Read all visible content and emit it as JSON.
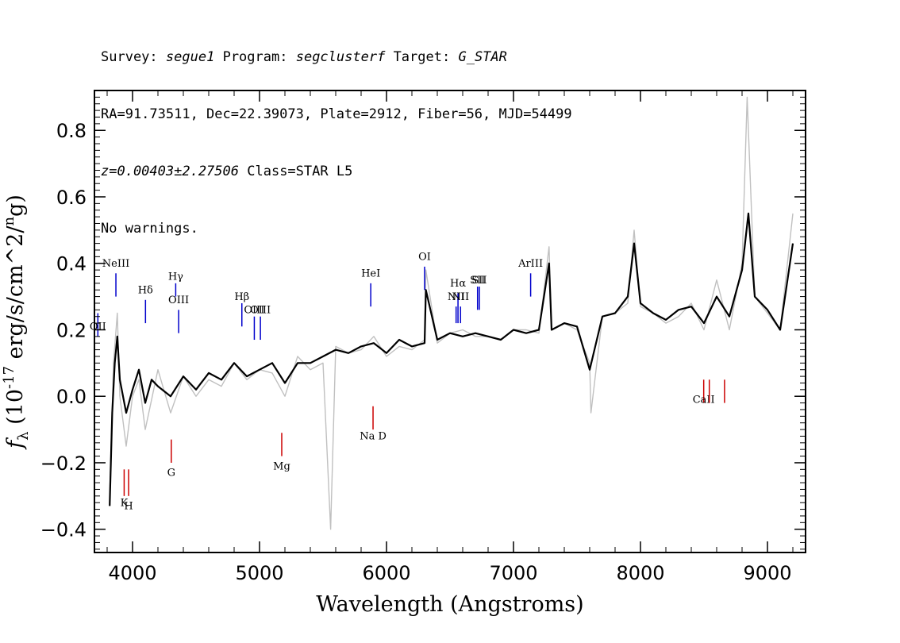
{
  "header": {
    "survey_label": "Survey:",
    "survey": "segue1",
    "program_label": "Program:",
    "program": "segclusterf",
    "target_label": "Target:",
    "target": "G_STAR",
    "coords": "RA=91.73511, Dec=22.39073, Plate=2912, Fiber=56, MJD=54499",
    "redshift": "z=0.00403±2.27506",
    "class": "Class=STAR L5",
    "warnings": "No warnings."
  },
  "chart_data": {
    "type": "line",
    "title": "",
    "xlabel": "Wavelength (Angstroms)",
    "ylabel": "f_λ (10^-17 erg/s/cm^2/Ang)",
    "xlim": [
      3700,
      9300
    ],
    "ylim": [
      -0.47,
      0.92
    ],
    "xticks": [
      4000,
      5000,
      6000,
      7000,
      8000,
      9000
    ],
    "yticks": [
      -0.4,
      -0.2,
      0.0,
      0.2,
      0.4,
      0.6,
      0.8
    ],
    "ytick_labels": [
      "−0.4",
      "−0.2",
      "0.0",
      "0.2",
      "0.4",
      "0.6",
      "0.8"
    ],
    "colors": {
      "raw": "#c0c0c0",
      "smoothed": "#000000",
      "emission": "#0000cc",
      "absorption": "#cc0000"
    },
    "series": [
      {
        "name": "raw flux",
        "x": [
          3820,
          3850,
          3880,
          3900,
          3950,
          4000,
          4050,
          4100,
          4200,
          4300,
          4400,
          4500,
          4600,
          4700,
          4800,
          4900,
          5000,
          5100,
          5200,
          5300,
          5400,
          5500,
          5560,
          5600,
          5700,
          5800,
          5900,
          6000,
          6100,
          6200,
          6300,
          6310,
          6400,
          6500,
          6600,
          6700,
          6800,
          6900,
          7000,
          7100,
          7200,
          7280,
          7300,
          7400,
          7500,
          7600,
          7610,
          7700,
          7800,
          7900,
          7950,
          8000,
          8100,
          8200,
          8300,
          8400,
          8500,
          8600,
          8700,
          8800,
          8840,
          8900,
          9000,
          9100,
          9200
        ],
        "y": [
          -0.3,
          0.1,
          0.25,
          0.0,
          -0.15,
          0.0,
          0.05,
          -0.1,
          0.08,
          -0.05,
          0.06,
          0.0,
          0.05,
          0.03,
          0.1,
          0.05,
          0.08,
          0.07,
          0.0,
          0.12,
          0.08,
          0.1,
          -0.4,
          0.15,
          0.13,
          0.14,
          0.18,
          0.12,
          0.15,
          0.14,
          0.17,
          0.38,
          0.16,
          0.19,
          0.2,
          0.18,
          0.18,
          0.17,
          0.2,
          0.2,
          0.19,
          0.45,
          0.2,
          0.22,
          0.2,
          0.1,
          -0.05,
          0.24,
          0.25,
          0.28,
          0.5,
          0.27,
          0.25,
          0.22,
          0.24,
          0.28,
          0.2,
          0.35,
          0.2,
          0.4,
          0.9,
          0.3,
          0.25,
          0.2,
          0.55
        ]
      },
      {
        "name": "smoothed flux",
        "x": [
          3820,
          3840,
          3860,
          3880,
          3900,
          3950,
          4000,
          4050,
          4100,
          4150,
          4200,
          4300,
          4400,
          4500,
          4600,
          4700,
          4800,
          4900,
          5000,
          5100,
          5200,
          5300,
          5400,
          5500,
          5600,
          5700,
          5800,
          5900,
          6000,
          6100,
          6200,
          6300,
          6310,
          6400,
          6500,
          6600,
          6700,
          6800,
          6900,
          7000,
          7100,
          7200,
          7280,
          7300,
          7400,
          7500,
          7600,
          7700,
          7800,
          7900,
          7950,
          8000,
          8100,
          8200,
          8300,
          8400,
          8500,
          8600,
          8700,
          8800,
          8850,
          8900,
          9000,
          9100,
          9200
        ],
        "y": [
          -0.33,
          -0.05,
          0.1,
          0.18,
          0.05,
          -0.05,
          0.02,
          0.08,
          -0.02,
          0.05,
          0.03,
          0.0,
          0.06,
          0.02,
          0.07,
          0.05,
          0.1,
          0.06,
          0.08,
          0.1,
          0.04,
          0.1,
          0.1,
          0.12,
          0.14,
          0.13,
          0.15,
          0.16,
          0.13,
          0.17,
          0.15,
          0.16,
          0.32,
          0.17,
          0.19,
          0.18,
          0.19,
          0.18,
          0.17,
          0.2,
          0.19,
          0.2,
          0.4,
          0.2,
          0.22,
          0.21,
          0.08,
          0.24,
          0.25,
          0.3,
          0.46,
          0.28,
          0.25,
          0.23,
          0.26,
          0.27,
          0.22,
          0.3,
          0.24,
          0.38,
          0.55,
          0.3,
          0.26,
          0.2,
          0.46
        ]
      }
    ],
    "line_markers": [
      {
        "label": "NeIII",
        "wavelength": 3869,
        "y_low": 0.3,
        "y_high": 0.37,
        "label_y": 0.39,
        "kind": "emission"
      },
      {
        "label": "Hδ",
        "wavelength": 4102,
        "y_low": 0.22,
        "y_high": 0.29,
        "label_y": 0.31,
        "kind": "emission"
      },
      {
        "label": "Hγ",
        "wavelength": 4340,
        "y_low": 0.3,
        "y_high": 0.34,
        "label_y": 0.35,
        "kind": "emission"
      },
      {
        "label": "OIII",
        "wavelength": 4363,
        "y_low": 0.19,
        "y_high": 0.26,
        "label_y": 0.28,
        "kind": "emission"
      },
      {
        "label": "Hβ",
        "wavelength": 4861,
        "y_low": 0.21,
        "y_high": 0.28,
        "label_y": 0.29,
        "kind": "emission"
      },
      {
        "label": "OIII",
        "wavelength": 4959,
        "y_low": 0.17,
        "y_high": 0.24,
        "label_y": 0.25,
        "kind": "emission"
      },
      {
        "label": "OIII",
        "wavelength": 5007,
        "y_low": 0.17,
        "y_high": 0.24,
        "label_y": 0.25,
        "kind": "emission"
      },
      {
        "label": "HeI",
        "wavelength": 5876,
        "y_low": 0.27,
        "y_high": 0.34,
        "label_y": 0.36,
        "kind": "emission"
      },
      {
        "label": "OI",
        "wavelength": 6300,
        "y_low": 0.32,
        "y_high": 0.39,
        "label_y": 0.41,
        "kind": "emission"
      },
      {
        "label": "NII",
        "wavelength": 6548,
        "y_low": 0.22,
        "y_high": 0.27,
        "label_y": 0.29,
        "kind": "emission"
      },
      {
        "label": "Hα",
        "wavelength": 6563,
        "y_low": 0.22,
        "y_high": 0.31,
        "label_y": 0.33,
        "kind": "emission"
      },
      {
        "label": "NII",
        "wavelength": 6583,
        "y_low": 0.22,
        "y_high": 0.27,
        "label_y": 0.29,
        "kind": "emission"
      },
      {
        "label": "SII",
        "wavelength": 6717,
        "y_low": 0.26,
        "y_high": 0.33,
        "label_y": 0.34,
        "kind": "emission"
      },
      {
        "label": "SII",
        "wavelength": 6731,
        "y_low": 0.26,
        "y_high": 0.33,
        "label_y": 0.34,
        "kind": "emission"
      },
      {
        "label": "ArIII",
        "wavelength": 7135,
        "y_low": 0.3,
        "y_high": 0.37,
        "label_y": 0.39,
        "kind": "emission"
      },
      {
        "label": "OII",
        "wavelength": 3727,
        "y_low": 0.18,
        "y_high": 0.25,
        "label_y": 0.2,
        "kind": "emission"
      },
      {
        "label": "K",
        "wavelength": 3934,
        "y_low": -0.3,
        "y_high": -0.22,
        "label_y": -0.33,
        "kind": "absorption"
      },
      {
        "label": "H",
        "wavelength": 3969,
        "y_low": -0.3,
        "y_high": -0.22,
        "label_y": -0.34,
        "kind": "absorption"
      },
      {
        "label": "G",
        "wavelength": 4305,
        "y_low": -0.2,
        "y_high": -0.13,
        "label_y": -0.24,
        "kind": "absorption"
      },
      {
        "label": "Mg",
        "wavelength": 5175,
        "y_low": -0.18,
        "y_high": -0.11,
        "label_y": -0.22,
        "kind": "absorption"
      },
      {
        "label": "Na D",
        "wavelength": 5894,
        "y_low": -0.1,
        "y_high": -0.03,
        "label_y": -0.13,
        "kind": "absorption"
      },
      {
        "label": "CaII",
        "wavelength": 8498,
        "y_low": -0.02,
        "y_high": 0.05,
        "label_y": -0.02,
        "kind": "absorption"
      },
      {
        "label": "",
        "wavelength": 8542,
        "y_low": -0.02,
        "y_high": 0.05,
        "label_y": 0,
        "kind": "absorption"
      },
      {
        "label": "",
        "wavelength": 8662,
        "y_low": -0.02,
        "y_high": 0.05,
        "label_y": 0,
        "kind": "absorption"
      }
    ]
  }
}
